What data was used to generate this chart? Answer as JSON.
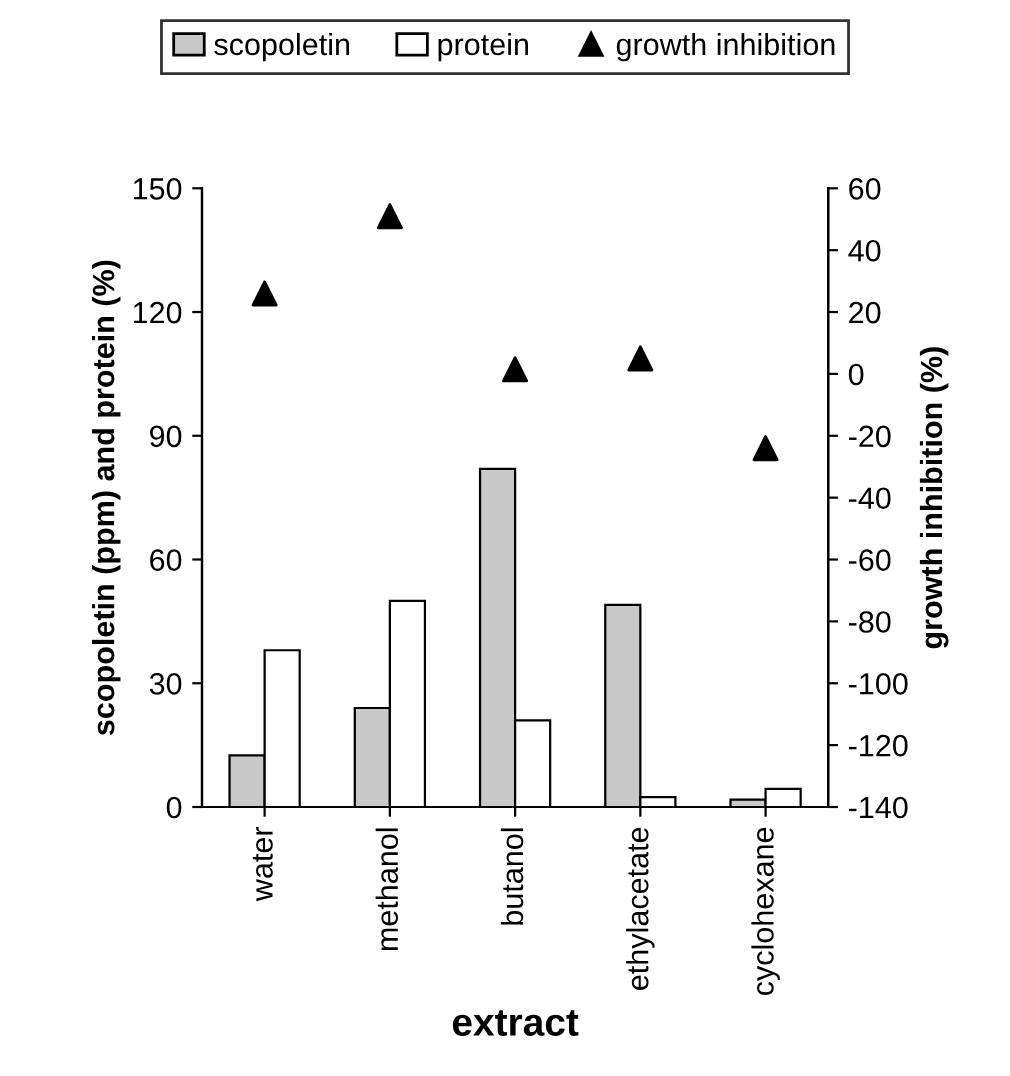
{
  "chart_data": {
    "type": "bar",
    "xlabel": "extract",
    "ylabel": "scopoletin (ppm) and protein (%)",
    "y2label": "growth inhibition (%)",
    "categories": [
      "water",
      "methanol",
      "butanol",
      "ethylacetate",
      "cyclohexane"
    ],
    "series": [
      {
        "name": "scopoletin",
        "color": "#c8c8c8",
        "values": [
          12.5,
          24,
          82,
          49,
          1.8
        ]
      },
      {
        "name": "protein",
        "color": "#ffffff",
        "values": [
          38,
          50,
          21,
          2.4,
          4.4
        ]
      },
      {
        "name": "growth inhibition",
        "type": "scatter",
        "axis": "y2",
        "color": "#000000",
        "marker": "triangle",
        "values": [
          26,
          51,
          1.5,
          5,
          -24
        ]
      }
    ],
    "ylim": [
      0,
      150
    ],
    "yticks": [
      0,
      30,
      60,
      90,
      120,
      150
    ],
    "y2lim": [
      -140,
      60
    ],
    "y2ticks": [
      -140,
      -120,
      -100,
      -80,
      -60,
      -40,
      -20,
      0,
      20,
      40,
      60
    ],
    "grid": false,
    "legend": "top"
  }
}
